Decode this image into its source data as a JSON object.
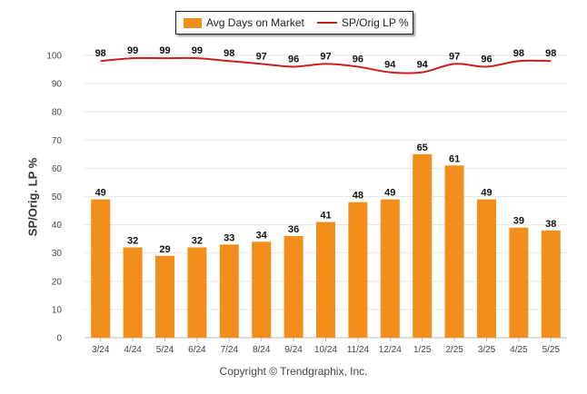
{
  "legend": {
    "bar_label": "Avg Days on Market",
    "line_label": "SP/Orig LP %"
  },
  "y_axis_title": "SP/Orig. LP %",
  "copyright": "Copyright © Trendgraphix, Inc.",
  "colors": {
    "bar": "#F28F1C",
    "line": "#C81E1E",
    "grid": "#E6E6E6"
  },
  "chart_data": {
    "type": "bar",
    "categories": [
      "3/24",
      "4/24",
      "5/24",
      "6/24",
      "7/24",
      "8/24",
      "9/24",
      "10/24",
      "11/24",
      "12/24",
      "1/25",
      "2/25",
      "3/25",
      "4/25",
      "5/25"
    ],
    "series": [
      {
        "name": "Avg Days on Market",
        "kind": "bar",
        "values": [
          49,
          32,
          29,
          32,
          33,
          34,
          36,
          41,
          48,
          49,
          65,
          61,
          49,
          39,
          38
        ]
      },
      {
        "name": "SP/Orig LP %",
        "kind": "line",
        "values": [
          98,
          99,
          99,
          99,
          98,
          97,
          96,
          97,
          96,
          94,
          94,
          97,
          96,
          98,
          98
        ]
      }
    ],
    "ylabel": "SP/Orig. LP %",
    "ylim": [
      0,
      100
    ],
    "yticks": [
      0,
      10,
      20,
      30,
      40,
      50,
      60,
      70,
      80,
      90,
      100
    ],
    "grid": true,
    "legend_position": "top"
  }
}
